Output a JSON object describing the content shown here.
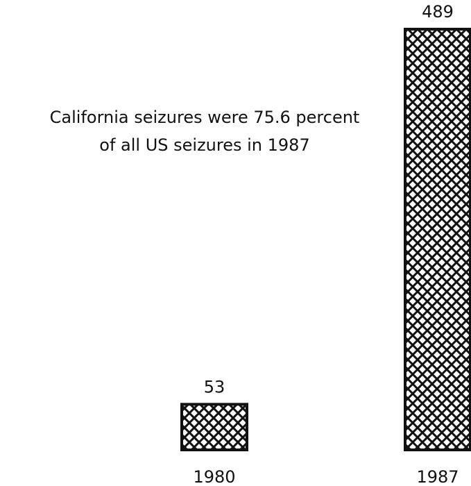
{
  "chart_data": {
    "type": "bar",
    "categories": [
      "1980",
      "1987"
    ],
    "values": [
      53,
      489
    ],
    "color": "#111111",
    "annotation": [
      "California seizures were 75.6 percent",
      "of all US seizures in 1987"
    ]
  }
}
